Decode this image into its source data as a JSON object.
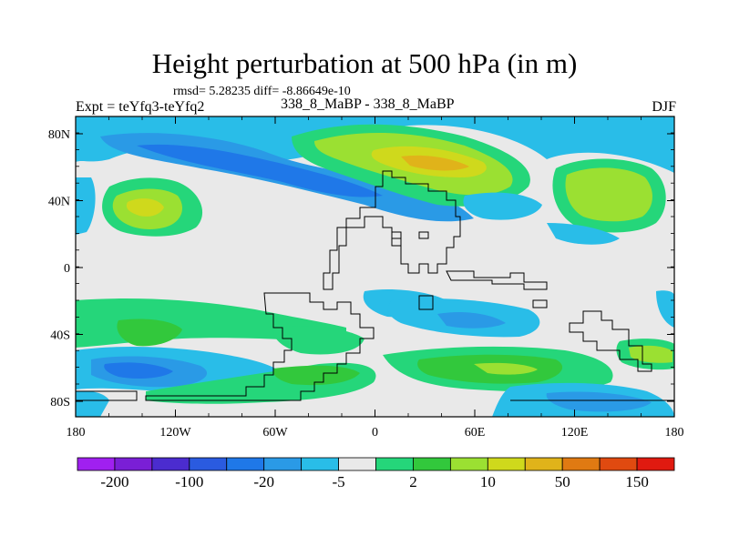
{
  "title": "Height perturbation at 500 hPa (in m)",
  "stats": "rmsd= 5.28235 diff= -8.86649e-10",
  "expt": "Expt = teYfq3-teYfq2",
  "runs": "338_8_MaBP - 338_8_MaBP",
  "season": "DJF",
  "x_ticks": [
    "180",
    "120W",
    "60W",
    "0",
    "60E",
    "120E",
    "180"
  ],
  "y_ticks": [
    "80N",
    "40N",
    "0",
    "40S",
    "80S"
  ],
  "colorbar": {
    "colors": [
      "#a020f0",
      "#7a1fd6",
      "#4b2ccf",
      "#2a5be0",
      "#1f78e8",
      "#2a9ae6",
      "#29bde8",
      "#e9e9e9",
      "#25d67a",
      "#32c83c",
      "#9be032",
      "#cfd91c",
      "#e0b31a",
      "#e07a12",
      "#e04a10",
      "#e01a10"
    ],
    "labels": [
      "-200",
      "-100",
      "-20",
      "-5",
      "2",
      "10",
      "50",
      "150"
    ]
  }
}
